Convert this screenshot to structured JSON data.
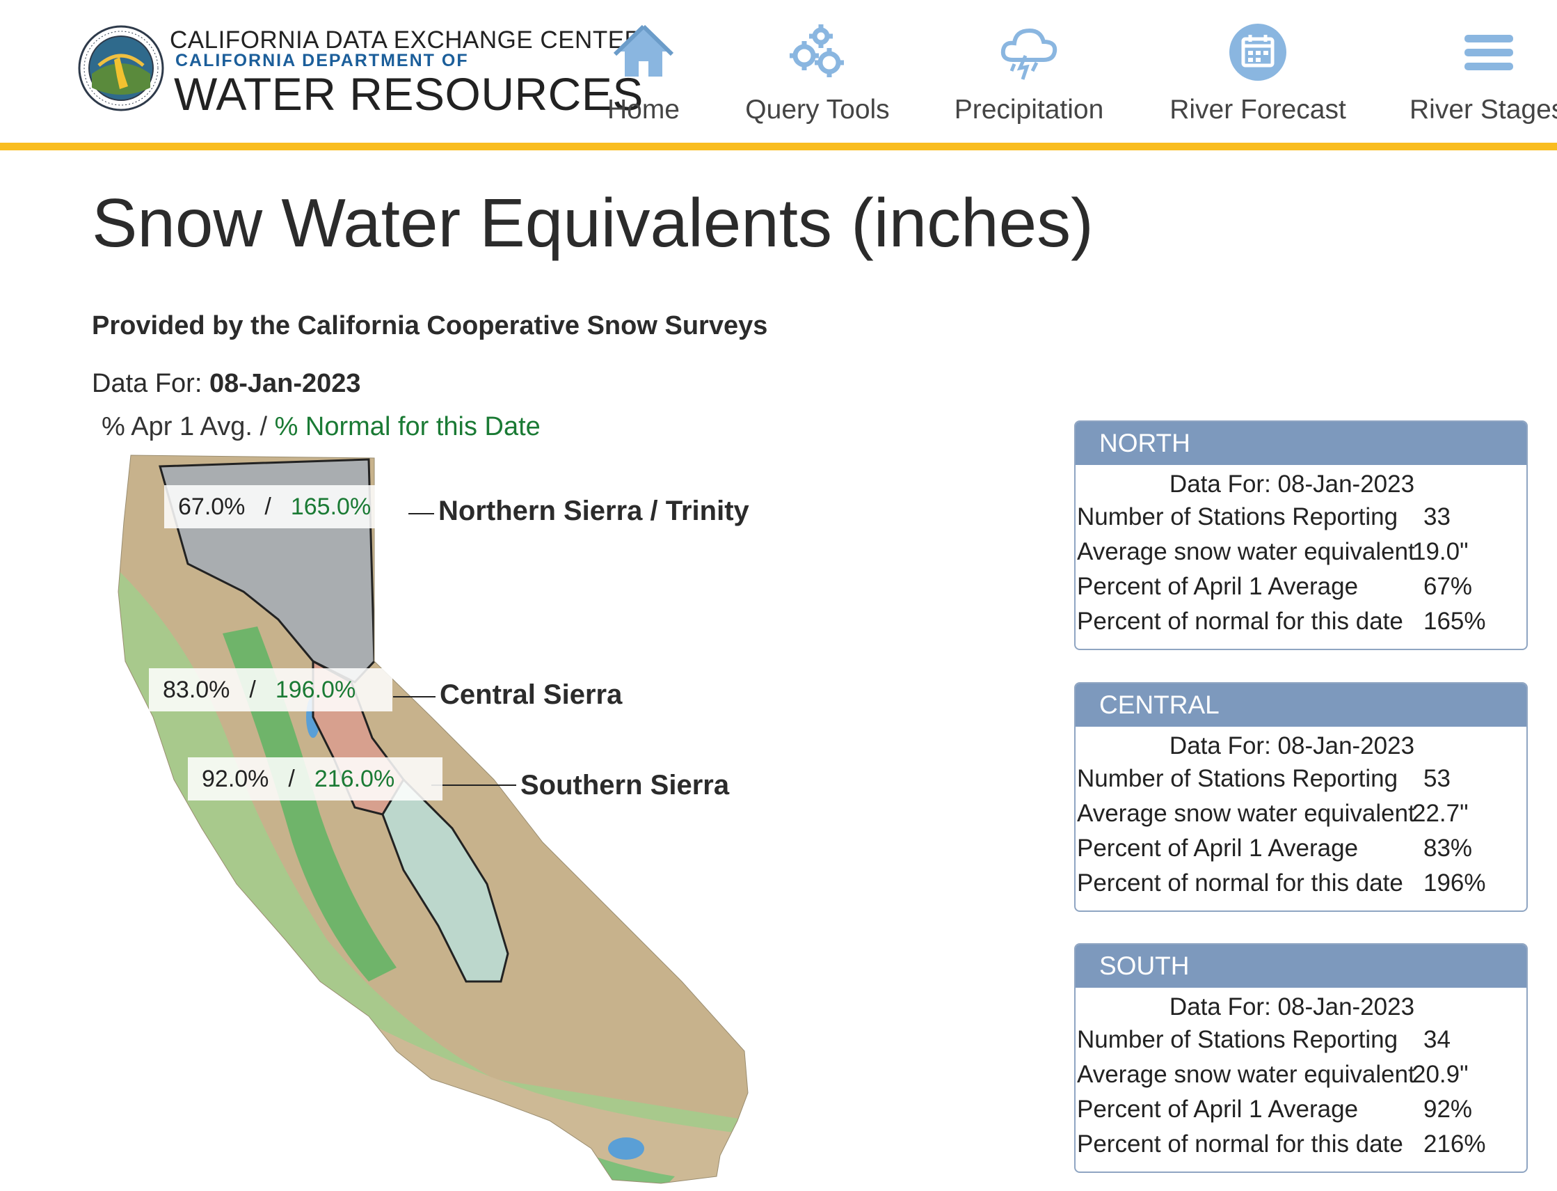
{
  "header": {
    "brand_line1": "CALIFORNIA DATA EXCHANGE CENTER",
    "brand_line2": "CALIFORNIA DEPARTMENT OF",
    "brand_line3": "WATER RESOURCES",
    "nav": [
      {
        "label": "Home",
        "icon": "home-icon"
      },
      {
        "label": "Query Tools",
        "icon": "gears-icon"
      },
      {
        "label": "Precipitation",
        "icon": "storm-cloud-icon"
      },
      {
        "label": "River Forecast",
        "icon": "calendar-icon"
      },
      {
        "label": "River Stages",
        "icon": "menu-icon"
      }
    ],
    "accent_color": "#f9bd20",
    "brand_blue": "#1b5e9a"
  },
  "main": {
    "title": "Snow Water Equivalents (inches)",
    "provider": "Provided by the California Cooperative Snow Surveys",
    "data_for_label": "Data For:",
    "data_for_date": "08-Jan-2023",
    "legend_apr": "% Apr 1 Avg.",
    "legend_sep": "/",
    "legend_normal": "% Normal for this Date",
    "legend_normal_color": "#1a7a34"
  },
  "map": {
    "regions": [
      {
        "name": "Northern Sierra / Trinity",
        "pct_apr1": "67.0%",
        "sep": "/",
        "pct_normal": "165.0%"
      },
      {
        "name": "Central Sierra",
        "pct_apr1": "83.0%",
        "sep": "/",
        "pct_normal": "196.0%"
      },
      {
        "name": "Southern Sierra",
        "pct_apr1": "92.0%",
        "sep": "/",
        "pct_normal": "216.0%"
      }
    ]
  },
  "cards": [
    {
      "title": "NORTH",
      "date_line": "Data For: 08-Jan-2023",
      "rows": [
        {
          "label": "Number of Stations Reporting",
          "value": "33"
        },
        {
          "label": "Average snow water equivalent",
          "value": "19.0\""
        },
        {
          "label": "Percent of April 1 Average",
          "value": "67%"
        },
        {
          "label": "Percent of normal for this date",
          "value": "165%"
        }
      ]
    },
    {
      "title": "CENTRAL",
      "date_line": "Data For: 08-Jan-2023",
      "rows": [
        {
          "label": "Number of Stations Reporting",
          "value": "53"
        },
        {
          "label": "Average snow water equivalent",
          "value": "22.7\""
        },
        {
          "label": "Percent of April 1 Average",
          "value": "83%"
        },
        {
          "label": "Percent of normal for this date",
          "value": "196%"
        }
      ]
    },
    {
      "title": "SOUTH",
      "date_line": "Data For: 08-Jan-2023",
      "rows": [
        {
          "label": "Number of Stations Reporting",
          "value": "34"
        },
        {
          "label": "Average snow water equivalent",
          "value": "20.9\""
        },
        {
          "label": "Percent of April 1 Average",
          "value": "92%"
        },
        {
          "label": "Percent of normal for this date",
          "value": "216%"
        }
      ]
    }
  ]
}
